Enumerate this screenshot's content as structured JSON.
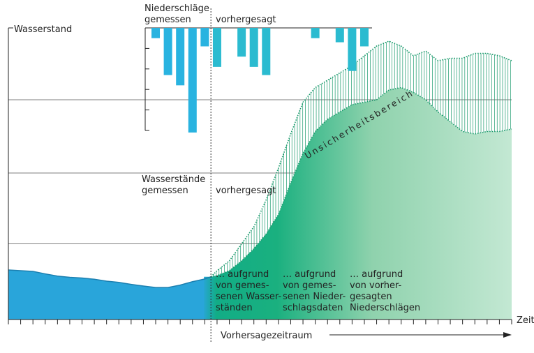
{
  "chart_data": {
    "type": "area",
    "axes": {
      "y_label": "Wasserstand",
      "x_label": "Zeit",
      "x_range": [
        0,
        41
      ],
      "y_range": [
        0,
        10
      ]
    },
    "labels": {
      "precip_measured": [
        "Niederschläge",
        "gemessen"
      ],
      "precip_forecast": "vorhergesagt",
      "levels_measured": [
        "Wasserstände",
        "gemessen"
      ],
      "levels_forecast": "vorhergesagt",
      "uncertainty": "Unsicherheitsbereich",
      "forecast_period": "Vorhersagezeitraum",
      "segment_1": [
        "… aufgrund",
        "von gemes-",
        "senen Wasser-",
        "ständen"
      ],
      "segment_2": [
        "… aufgrund",
        "von gemes-",
        "senen Nieder-",
        "schlagsdaten"
      ],
      "segment_3": [
        "… aufgrund",
        "von vorher-",
        "gesagten",
        "Niederschlägen"
      ]
    },
    "forecast_start_x": 16.5,
    "precipitation": {
      "y_range": [
        0,
        5
      ],
      "measured": {
        "x": [
          12,
          13,
          14,
          15,
          16
        ],
        "values": [
          0.5,
          2.3,
          2.8,
          5.1,
          0.9
        ]
      },
      "forecast": {
        "x": [
          17,
          19,
          20,
          21,
          25,
          27,
          28,
          29
        ],
        "values": [
          1.9,
          1.4,
          1.9,
          2.3,
          0.5,
          0.7,
          2.1,
          0.9
        ]
      }
    },
    "water_level": {
      "measured": {
        "x": [
          0,
          2,
          3,
          4,
          5,
          6,
          7,
          8,
          9,
          10,
          11,
          12,
          13,
          14,
          15,
          16,
          16.5
        ],
        "y": [
          2.03,
          1.97,
          1.87,
          1.78,
          1.73,
          1.7,
          1.65,
          1.57,
          1.52,
          1.44,
          1.37,
          1.31,
          1.31,
          1.41,
          1.55,
          1.66,
          1.75
        ]
      },
      "forecast_upper": {
        "x": [
          16.5,
          17,
          18,
          19,
          20,
          21,
          22,
          23,
          24,
          25,
          26,
          27,
          28,
          29,
          30,
          31,
          32,
          33,
          34,
          35,
          36,
          37,
          38,
          39,
          40,
          41
        ],
        "y": [
          1.75,
          2.0,
          2.4,
          3.1,
          3.8,
          4.9,
          6.2,
          7.6,
          8.9,
          9.5,
          9.8,
          10.1,
          10.4,
          10.8,
          11.2,
          11.4,
          11.2,
          10.8,
          11.0,
          10.6,
          10.7,
          10.7,
          10.9,
          10.9,
          10.8,
          10.6
        ]
      },
      "forecast": {
        "x": [
          16.5,
          17,
          18,
          19,
          20,
          21,
          22,
          23,
          24,
          25,
          26,
          27,
          28,
          29,
          30,
          31,
          32,
          33,
          34,
          35,
          36,
          37,
          38,
          39,
          40,
          41
        ],
        "y": [
          1.75,
          1.8,
          2.0,
          2.4,
          2.9,
          3.5,
          4.3,
          5.6,
          6.8,
          7.7,
          8.2,
          8.5,
          8.8,
          8.9,
          9.0,
          9.4,
          9.5,
          9.3,
          9.0,
          8.5,
          8.1,
          7.7,
          7.6,
          7.7,
          7.7,
          7.8
        ]
      }
    },
    "gridlines_y": [
      3.1,
      6.0,
      9.0
    ],
    "colors": {
      "measured_fill": "#29a5da",
      "measured_line": "#1b7fb0",
      "precip_measured": "#29b3e0",
      "precip_forecast": "#2bbbd0",
      "forecast_dark": "#14b07e",
      "forecast_light": "#b8e4cb",
      "uncertainty": "#1a9a6c"
    }
  }
}
